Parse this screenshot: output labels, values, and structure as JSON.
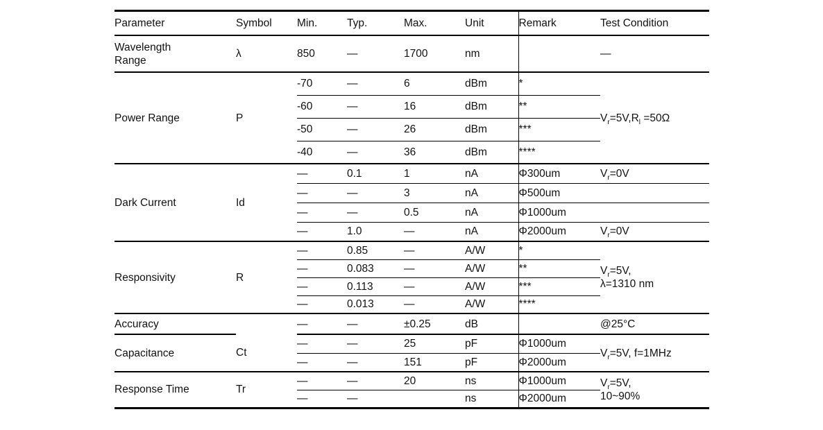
{
  "colors": {
    "background": "#ffffff",
    "text": "#121212",
    "muted_dash": "#878787",
    "rule": "#000000"
  },
  "table": {
    "headers": [
      "Parameter",
      "Symbol",
      "Min.",
      "Typ.",
      "Max.",
      "Unit",
      "Remark",
      "Test Condition"
    ],
    "groups": [
      {
        "parameter": "Wavelength\nRange",
        "symbol": "λ",
        "per_row_test": true,
        "rows": [
          {
            "min": "850",
            "typ": "—",
            "max": "1700",
            "unit": "nm",
            "remark": "",
            "test": "—",
            "test_center": true
          }
        ]
      },
      {
        "parameter": "Power Range",
        "symbol": "P",
        "test": "V_{r}=5V,R_{l} =50Ω",
        "rows": [
          {
            "min": "-70",
            "typ": "—",
            "max": "6",
            "unit": "dBm",
            "remark": "*"
          },
          {
            "min": "-60",
            "typ": "—",
            "max": "16",
            "unit": "dBm",
            "remark": "**"
          },
          {
            "min": "-50",
            "typ": "—",
            "max": "26",
            "unit": "dBm",
            "remark": "***"
          },
          {
            "min": "-40",
            "typ": "—",
            "max": "36",
            "unit": "dBm",
            "remark": "****"
          }
        ]
      },
      {
        "parameter": "Dark Current",
        "symbol": "Id",
        "per_row_test": true,
        "rows": [
          {
            "min": "—",
            "min_muted": true,
            "typ": "0.1",
            "max": "1",
            "unit": "nA",
            "remark": "Φ300um",
            "test": "V_{r}=0V"
          },
          {
            "min": "—",
            "min_muted": true,
            "typ": "—",
            "typ_muted": true,
            "max": "3",
            "unit": "nA",
            "remark": "Φ500um",
            "test": ""
          },
          {
            "min": "—",
            "typ": "—",
            "max": "0.5",
            "unit": "nA",
            "remark": "Φ1000um",
            "test": ""
          },
          {
            "min": "—",
            "min_muted": true,
            "typ": "1.0",
            "max": "—",
            "max_muted": true,
            "unit": "nA",
            "remark": "Φ2000um",
            "test": "V_{r}=0V"
          }
        ]
      },
      {
        "parameter": "Responsivity",
        "symbol": "R",
        "test": "V_{r}=5V,\nλ=1310 nm",
        "rows": [
          {
            "min": "—",
            "typ": "0.85",
            "max": "—",
            "unit": "A/W",
            "remark": "*"
          },
          {
            "min": "—",
            "typ": "0.083",
            "max": "—",
            "unit": "A/W",
            "remark": "**"
          },
          {
            "min": "—",
            "typ": "0.113",
            "max": "—",
            "unit": "A/W",
            "remark": "***"
          },
          {
            "min": "—",
            "typ": "0.013",
            "max": "—",
            "unit": "A/W",
            "remark": "****"
          }
        ]
      },
      {
        "parameter": "Accuracy",
        "symbol": "",
        "per_row_test": true,
        "rows": [
          {
            "min": "—",
            "typ": "—",
            "max": "±0.25",
            "unit": "dB",
            "remark": "",
            "test": "@25°C"
          }
        ]
      },
      {
        "parameter": "Capacitance",
        "symbol": "Ct",
        "test": "V_{r}=5V, f=1MHz",
        "rows": [
          {
            "min": "—",
            "typ": "—",
            "max": "25",
            "unit": "pF",
            "remark": "Φ1000um"
          },
          {
            "min": "—",
            "typ": "—",
            "max": "151",
            "unit": "pF",
            "remark": "Φ2000um"
          }
        ]
      },
      {
        "parameter": "Response Time",
        "symbol": "Tr",
        "test": "V_{r}=5V,\n10~90%",
        "rows": [
          {
            "min": "—",
            "typ": "—",
            "max": "20",
            "unit": "ns",
            "remark": "Φ1000um"
          },
          {
            "min": "—",
            "typ": "—",
            "max": "",
            "unit": "ns",
            "remark": "Φ2000um"
          }
        ]
      }
    ]
  }
}
